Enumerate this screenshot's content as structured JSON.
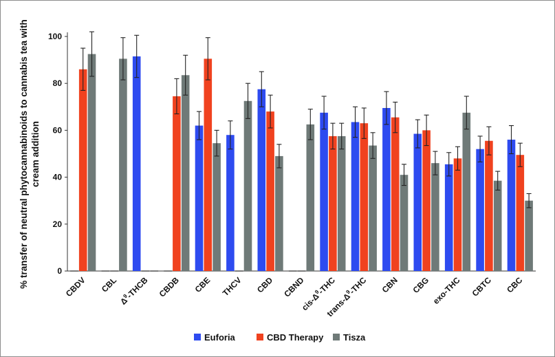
{
  "chart_data": {
    "type": "bar",
    "ylabel_lines": [
      "% transfer of neutral phytocannabinoids to cannabis tea with",
      "cream addition"
    ],
    "xlabel": "",
    "ylim": [
      0,
      100
    ],
    "yticks": [
      0,
      20,
      40,
      60,
      80,
      100
    ],
    "grid": false,
    "legend_position": "bottom",
    "categories": [
      {
        "main": "CBDV"
      },
      {
        "main": "CBL"
      },
      {
        "pre": "Δ",
        "sup": "9",
        "post": "-THCB"
      },
      {
        "main": "CBDB"
      },
      {
        "main": "CBE"
      },
      {
        "main": "THCV"
      },
      {
        "main": "CBD"
      },
      {
        "main": "CBND"
      },
      {
        "pre": "cis-Δ",
        "sup": "9",
        "post": "-THC"
      },
      {
        "pre": "trans-Δ",
        "sup": "9",
        "post": "-THC"
      },
      {
        "main": "CBN"
      },
      {
        "main": "CBG"
      },
      {
        "main": "exo-THC"
      },
      {
        "main": "CBTC"
      },
      {
        "main": "CBC"
      }
    ],
    "series": [
      {
        "name": "Euforia",
        "color": "#2e4bf0",
        "values": [
          0,
          0,
          91.5,
          0,
          62,
          58,
          77.5,
          0,
          67.5,
          63.5,
          69.5,
          58.5,
          45.5,
          52,
          56
        ],
        "errors": [
          0,
          0,
          9,
          0,
          6,
          6,
          7.5,
          0,
          7,
          6.5,
          7,
          6,
          5,
          5.5,
          6
        ]
      },
      {
        "name": "CBD Therapy",
        "color": "#f0421f",
        "values": [
          86,
          0,
          0,
          74.5,
          90.5,
          0,
          68,
          0,
          57.5,
          63,
          65.5,
          60,
          48,
          55.5,
          49.5
        ],
        "errors": [
          9,
          0,
          0,
          7.5,
          9,
          0,
          7,
          0,
          5.5,
          6.5,
          6.5,
          6.5,
          5,
          6,
          5
        ]
      },
      {
        "name": "Tisza",
        "color": "#6f7a78",
        "values": [
          92.5,
          90.5,
          0,
          83.5,
          54.5,
          72.5,
          49,
          62.5,
          57.5,
          53.5,
          41,
          46,
          67.5,
          38.5,
          30
        ],
        "errors": [
          9.5,
          9,
          0,
          8.5,
          5.5,
          7.5,
          5,
          6.5,
          5.5,
          5.5,
          4.5,
          5,
          7,
          4,
          3
        ]
      }
    ]
  }
}
